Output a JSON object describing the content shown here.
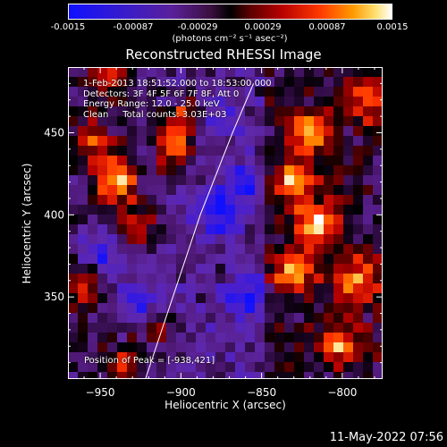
{
  "colorbar": {
    "ticks": [
      "-0.0015",
      "-0.00087",
      "-0.00029",
      "0.00029",
      "0.00087",
      "0.0015"
    ],
    "unit_label": "(photons cm⁻² s⁻¹ asec⁻²)"
  },
  "header": {
    "title": "Reconstructed RHESSI Image"
  },
  "info": {
    "line1": "1-Feb-2013 18:51:52.000 to 18:53:00.000",
    "line2": "Detectors: 3F 4F 5F 6F 7F 8F, Att 0",
    "line3": "Energy Range: 12.0 - 25.0 keV",
    "line4": "Clean     Total counts: 3.03E+03",
    "peak": "Position of Peak = [-938,421]"
  },
  "footer": {
    "timestamp": "11-May-2022 07:56"
  },
  "chart_data": {
    "type": "heatmap",
    "title": "Reconstructed RHESSI Image",
    "xlabel": "Heliocentric X (arcsec)",
    "ylabel": "Heliocentric Y (arcsec)",
    "xlim": [
      -970,
      -775
    ],
    "ylim": [
      300,
      490
    ],
    "x_ticks": [
      -950,
      -900,
      -850,
      -800
    ],
    "y_ticks": [
      350,
      400,
      450
    ],
    "colorbar_range": [
      -0.0015,
      0.0015
    ],
    "peak_position": [
      -938,
      421
    ],
    "limb_curve": [
      [
        -922,
        300
      ],
      [
        -905,
        350
      ],
      [
        -888,
        400
      ],
      [
        -868,
        450
      ],
      [
        -855,
        480
      ]
    ],
    "bright_regions": [
      {
        "x": -940,
        "y": 421,
        "level": 0.95
      },
      {
        "x": -905,
        "y": 440,
        "level": 0.75
      },
      {
        "x": -895,
        "y": 460,
        "level": 0.7
      },
      {
        "x": -955,
        "y": 445,
        "level": 0.6
      },
      {
        "x": -830,
        "y": 420,
        "level": 0.9
      },
      {
        "x": -815,
        "y": 395,
        "level": 0.85
      },
      {
        "x": -790,
        "y": 360,
        "level": 0.8
      },
      {
        "x": -820,
        "y": 450,
        "level": 0.75
      },
      {
        "x": -785,
        "y": 470,
        "level": 0.7
      },
      {
        "x": -830,
        "y": 365,
        "level": 0.75
      },
      {
        "x": -800,
        "y": 320,
        "level": 0.7
      },
      {
        "x": -960,
        "y": 360,
        "level": 0.55
      },
      {
        "x": -925,
        "y": 395,
        "level": 0.55
      },
      {
        "x": -935,
        "y": 305,
        "level": 0.5
      },
      {
        "x": -915,
        "y": 330,
        "level": 0.45
      },
      {
        "x": -945,
        "y": 485,
        "level": 0.5
      }
    ],
    "dark_regions": [
      {
        "x": -875,
        "y": 400,
        "level": -0.6
      },
      {
        "x": -860,
        "y": 350,
        "level": -0.5
      },
      {
        "x": -880,
        "y": 460,
        "level": -0.45
      },
      {
        "x": -950,
        "y": 375,
        "level": -0.55
      },
      {
        "x": -930,
        "y": 345,
        "level": -0.5
      },
      {
        "x": -860,
        "y": 420,
        "level": -0.45
      }
    ]
  }
}
